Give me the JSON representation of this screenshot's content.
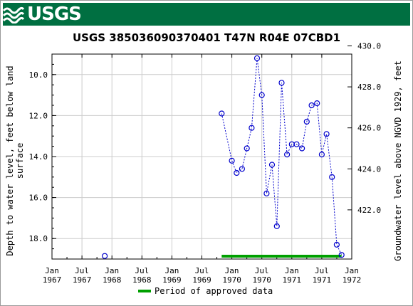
{
  "header": {
    "logo_text": "USGS",
    "logo_icon": "usgs-wave-icon",
    "banner_color": "#006f41"
  },
  "chart_data": {
    "type": "scatter",
    "title": "USGS 385036090370401 T47N R04E 07CBD1",
    "ylabel_left": [
      "Depth to water level, feet below land",
      "surface"
    ],
    "ylabel_right": "Groundwater level above NGVD 1929, feet",
    "x_ticks": [
      {
        "t": 1967.0,
        "line1": "Jan",
        "line2": "1967"
      },
      {
        "t": 1967.5,
        "line1": "Jul",
        "line2": "1967"
      },
      {
        "t": 1968.0,
        "line1": "Jan",
        "line2": "1968"
      },
      {
        "t": 1968.5,
        "line1": "Jul",
        "line2": "1968"
      },
      {
        "t": 1969.0,
        "line1": "Jan",
        "line2": "1969"
      },
      {
        "t": 1969.5,
        "line1": "Jul",
        "line2": "1969"
      },
      {
        "t": 1970.0,
        "line1": "Jan",
        "line2": "1970"
      },
      {
        "t": 1970.5,
        "line1": "Jul",
        "line2": "1970"
      },
      {
        "t": 1971.0,
        "line1": "Jan",
        "line2": "1971"
      },
      {
        "t": 1971.5,
        "line1": "Jul",
        "line2": "1971"
      },
      {
        "t": 1972.0,
        "line1": "Jan",
        "line2": "1972"
      }
    ],
    "x_range": [
      1967.0,
      1972.0
    ],
    "y_left_range": [
      9.0,
      19.0
    ],
    "y_left_ticks": [
      "10.0",
      "12.0",
      "14.0",
      "16.0",
      "18.0"
    ],
    "y_right_ticks": [
      "430.0",
      "428.0",
      "426.0",
      "424.0",
      "422.0"
    ],
    "grid": true,
    "series": [
      {
        "color": "#0000cc",
        "points": [
          {
            "t": 1967.88,
            "depth": 18.85
          },
          {
            "t": 1969.83,
            "depth": 11.9
          },
          {
            "t": 1970.0,
            "depth": 14.2
          },
          {
            "t": 1970.08,
            "depth": 14.8
          },
          {
            "t": 1970.17,
            "depth": 14.6
          },
          {
            "t": 1970.25,
            "depth": 13.6
          },
          {
            "t": 1970.33,
            "depth": 12.6
          },
          {
            "t": 1970.42,
            "depth": 9.2
          },
          {
            "t": 1970.5,
            "depth": 11.0
          },
          {
            "t": 1970.58,
            "depth": 15.8
          },
          {
            "t": 1970.67,
            "depth": 14.4
          },
          {
            "t": 1970.75,
            "depth": 17.4
          },
          {
            "t": 1970.83,
            "depth": 10.4
          },
          {
            "t": 1970.92,
            "depth": 13.9
          },
          {
            "t": 1971.0,
            "depth": 13.4
          },
          {
            "t": 1971.08,
            "depth": 13.4
          },
          {
            "t": 1971.17,
            "depth": 13.6
          },
          {
            "t": 1971.25,
            "depth": 12.3
          },
          {
            "t": 1971.33,
            "depth": 11.5
          },
          {
            "t": 1971.42,
            "depth": 11.4
          },
          {
            "t": 1971.5,
            "depth": 13.9
          },
          {
            "t": 1971.58,
            "depth": 12.9
          },
          {
            "t": 1971.67,
            "depth": 15.0
          },
          {
            "t": 1971.75,
            "depth": 18.3
          },
          {
            "t": 1971.83,
            "depth": 18.8
          }
        ]
      }
    ],
    "approved_period": {
      "start": 1969.83,
      "end": 1971.83,
      "color": "#00a000"
    },
    "legend": {
      "label": "Period of approved data",
      "placement": "bottom-center"
    }
  }
}
